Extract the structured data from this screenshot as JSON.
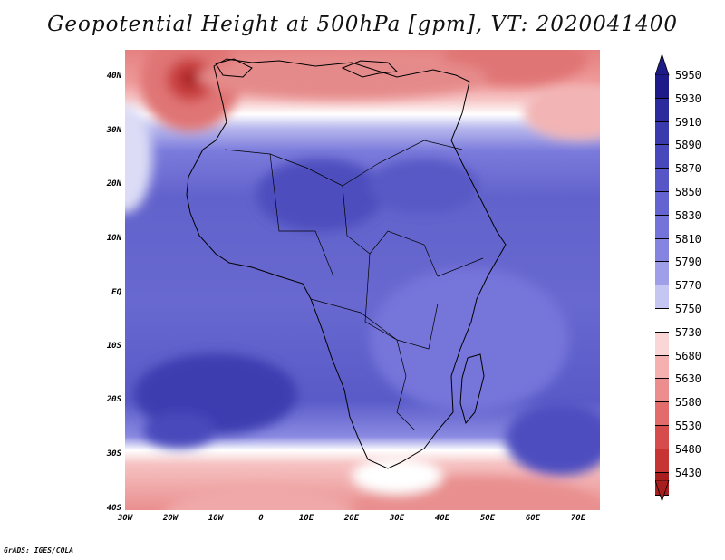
{
  "title": "Geopotential Height at 500hPa [gpm], VT: 2020041400",
  "footer": "GrADS: IGES/COLA",
  "axes": {
    "y_labels": [
      "40N",
      "30N",
      "20N",
      "10N",
      "EQ",
      "10S",
      "20S",
      "30S",
      "40S"
    ],
    "x_labels": [
      "30W",
      "20W",
      "10W",
      "0",
      "10E",
      "20E",
      "30E",
      "40E",
      "50E",
      "60E",
      "70E"
    ]
  },
  "colorbar": {
    "labels": [
      "5950",
      "5930",
      "5910",
      "5890",
      "5870",
      "5850",
      "5830",
      "5810",
      "5790",
      "5770",
      "5750",
      "5730",
      "5680",
      "5630",
      "5580",
      "5530",
      "5480",
      "5430"
    ],
    "colors": [
      "#1e1a88",
      "#2b2b9e",
      "#3a3aaf",
      "#4848bd",
      "#5656c7",
      "#6464d1",
      "#7373d9",
      "#8585e1",
      "#9e9ee9",
      "#c6c6f2",
      "#ffffff",
      "#fbd6d6",
      "#f5b0b0",
      "#ed8e8e",
      "#e26b6b",
      "#d64c4c",
      "#c63434",
      "#a81e1e"
    ]
  }
}
